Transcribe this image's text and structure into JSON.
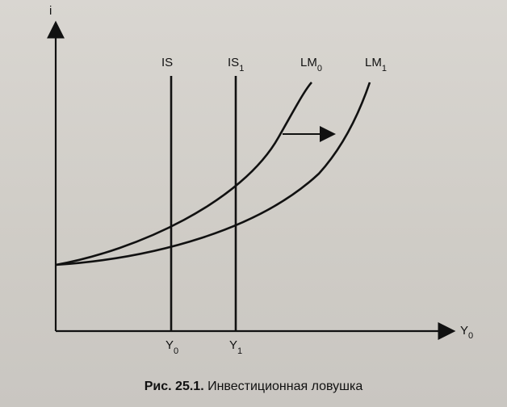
{
  "diagram": {
    "y_axis_label": "i",
    "x_axis_label_main": "Y",
    "x_axis_label_sub": "0",
    "curves": {
      "is0": {
        "label": "IS"
      },
      "is1": {
        "label": "IS",
        "sub": "1"
      },
      "lm0": {
        "label": "LM",
        "sub": "0"
      },
      "lm1": {
        "label": "LM",
        "sub": "1"
      }
    },
    "ticks": {
      "y0": {
        "label": "Y",
        "sub": "0"
      },
      "y1": {
        "label": "Y",
        "sub": "1"
      }
    }
  },
  "caption": {
    "number": "Рис. 25.1.",
    "text": "Инвестиционная ловушка"
  }
}
